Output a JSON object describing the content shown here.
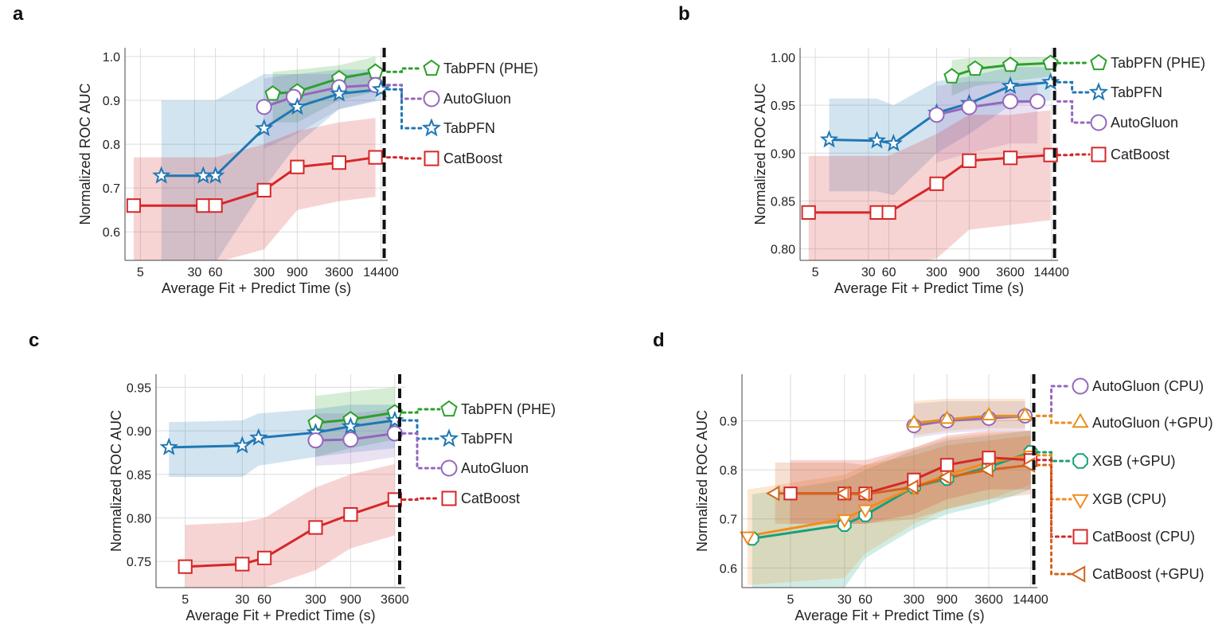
{
  "colors": {
    "tabpfn_phe": "#2ca02c",
    "tabpfn": "#1f77b4",
    "autogluon": "#9467bd",
    "catboost": "#d62728",
    "autogluon_gpu": "#e69119",
    "xgb_gpu": "#17a07a",
    "xgb_cpu": "#f28c1e",
    "catboost_gpu": "#d4641a"
  },
  "panels": [
    {
      "letter": "a"
    },
    {
      "letter": "b"
    },
    {
      "letter": "c"
    },
    {
      "letter": "d"
    }
  ],
  "chart_data": [
    {
      "panel": "a",
      "type": "line",
      "xscale": "log",
      "xlabel": "Average Fit + Predict Time (s)",
      "ylabel": "Normalized ROC AUC",
      "xticks": [
        5,
        30,
        60,
        300,
        900,
        3600,
        14400
      ],
      "xlim": [
        3,
        18000
      ],
      "yticks": [
        0.6,
        0.7,
        0.8,
        0.9,
        1.0
      ],
      "ytick_labels": [
        "0.6",
        "0.7",
        "0.8",
        "0.9",
        "1.0"
      ],
      "ylim": [
        0.535,
        1.02
      ],
      "time_limit": 16000,
      "grid": true,
      "series": [
        {
          "name": "TabPFN (PHE)",
          "color_key": "tabpfn_phe",
          "marker": "pentagon",
          "x": [
            400,
            900,
            3600,
            12000
          ],
          "y": [
            0.915,
            0.92,
            0.95,
            0.965
          ],
          "band_low": [
            0.85,
            0.85,
            0.9,
            0.92
          ],
          "band_high": [
            0.965,
            0.97,
            0.98,
            1.0
          ]
        },
        {
          "name": "AutoGluon",
          "color_key": "autogluon",
          "marker": "circle",
          "x": [
            300,
            800,
            3600,
            12000
          ],
          "y": [
            0.885,
            0.908,
            0.93,
            0.935
          ],
          "band_low": [
            0.79,
            0.82,
            0.88,
            0.9
          ],
          "band_high": [
            0.95,
            0.96,
            0.96,
            0.96
          ]
        },
        {
          "name": "TabPFN",
          "color_key": "tabpfn",
          "marker": "star",
          "x": [
            10,
            40,
            60,
            300,
            900,
            3600,
            14400
          ],
          "y": [
            0.728,
            0.728,
            0.728,
            0.836,
            0.885,
            0.915,
            0.925
          ],
          "band_low": [
            0.53,
            0.53,
            0.53,
            0.7,
            0.8,
            0.88,
            0.9
          ],
          "band_high": [
            0.9,
            0.9,
            0.9,
            0.96,
            0.96,
            0.97,
            0.97
          ]
        },
        {
          "name": "CatBoost",
          "color_key": "catboost",
          "marker": "square",
          "x": [
            4,
            40,
            60,
            300,
            900,
            3600,
            12000
          ],
          "y": [
            0.66,
            0.66,
            0.66,
            0.695,
            0.748,
            0.758,
            0.77
          ],
          "band_low": [
            0.53,
            0.53,
            0.53,
            0.56,
            0.65,
            0.67,
            0.68
          ],
          "band_high": [
            0.77,
            0.77,
            0.77,
            0.8,
            0.83,
            0.85,
            0.86
          ]
        }
      ],
      "legend": [
        "TabPFN (PHE)",
        "AutoGluon",
        "TabPFN",
        "CatBoost"
      ]
    },
    {
      "panel": "b",
      "type": "line",
      "xscale": "log",
      "xlabel": "Average Fit + Predict Time (s)",
      "ylabel": "Normalized ROC AUC",
      "xticks": [
        5,
        30,
        60,
        300,
        900,
        3600,
        14400
      ],
      "xlim": [
        3,
        18000
      ],
      "yticks": [
        0.8,
        0.85,
        0.9,
        0.95,
        1.0
      ],
      "ytick_labels": [
        "0.80",
        "0.85",
        "0.90",
        "0.95",
        "1.00"
      ],
      "ylim": [
        0.788,
        1.01
      ],
      "time_limit": 16000,
      "grid": true,
      "series": [
        {
          "name": "TabPFN (PHE)",
          "color_key": "tabpfn_phe",
          "marker": "pentagon",
          "x": [
            500,
            1100,
            3600,
            14000
          ],
          "y": [
            0.98,
            0.988,
            0.992,
            0.994
          ],
          "band_low": [
            0.96,
            0.97,
            0.975,
            0.98
          ],
          "band_high": [
            0.997,
            1.0,
            1.0,
            1.0
          ]
        },
        {
          "name": "TabPFN",
          "color_key": "tabpfn",
          "marker": "star",
          "x": [
            8,
            40,
            70,
            300,
            900,
            3600,
            14000
          ],
          "y": [
            0.914,
            0.913,
            0.91,
            0.942,
            0.952,
            0.97,
            0.974
          ],
          "band_low": [
            0.86,
            0.86,
            0.856,
            0.9,
            0.92,
            0.95,
            0.955
          ],
          "band_high": [
            0.957,
            0.957,
            0.95,
            0.975,
            0.98,
            0.99,
            0.99
          ]
        },
        {
          "name": "AutoGluon",
          "color_key": "autogluon",
          "marker": "circle",
          "x": [
            300,
            900,
            3600,
            9000
          ],
          "y": [
            0.94,
            0.948,
            0.954,
            0.954
          ],
          "band_low": [
            0.89,
            0.9,
            0.91,
            0.91
          ],
          "band_high": [
            0.97,
            0.975,
            0.975,
            0.975
          ]
        },
        {
          "name": "CatBoost",
          "color_key": "catboost",
          "marker": "square",
          "x": [
            4,
            40,
            60,
            300,
            900,
            3600,
            14000
          ],
          "y": [
            0.838,
            0.838,
            0.838,
            0.868,
            0.892,
            0.895,
            0.898
          ],
          "band_low": [
            0.78,
            0.78,
            0.78,
            0.79,
            0.82,
            0.825,
            0.83
          ],
          "band_high": [
            0.897,
            0.897,
            0.897,
            0.92,
            0.94,
            0.94,
            0.945
          ]
        }
      ],
      "legend": [
        "TabPFN (PHE)",
        "TabPFN",
        "AutoGluon",
        "CatBoost"
      ]
    },
    {
      "panel": "c",
      "type": "line",
      "xscale": "log",
      "xlabel": "Average Fit + Predict Time (s)",
      "ylabel": "Normalized ROC AUC",
      "xticks": [
        5,
        30,
        60,
        300,
        900,
        3600
      ],
      "xlim": [
        2,
        5000
      ],
      "yticks": [
        0.75,
        0.8,
        0.85,
        0.9,
        0.95
      ],
      "ytick_labels": [
        "0.75",
        "0.80",
        "0.85",
        "0.90",
        "0.95"
      ],
      "ylim": [
        0.72,
        0.965
      ],
      "time_limit": 4200,
      "grid": true,
      "series": [
        {
          "name": "TabPFN (PHE)",
          "color_key": "tabpfn_phe",
          "marker": "pentagon",
          "x": [
            300,
            900,
            3600
          ],
          "y": [
            0.909,
            0.913,
            0.921
          ],
          "band_low": [
            0.87,
            0.88,
            0.89
          ],
          "band_high": [
            0.94,
            0.945,
            0.95
          ]
        },
        {
          "name": "TabPFN",
          "color_key": "tabpfn",
          "marker": "star",
          "x": [
            3,
            30,
            50,
            300,
            900,
            3600
          ],
          "y": [
            0.881,
            0.883,
            0.892,
            0.898,
            0.905,
            0.912
          ],
          "band_low": [
            0.847,
            0.847,
            0.86,
            0.87,
            0.875,
            0.88
          ],
          "band_high": [
            0.91,
            0.912,
            0.92,
            0.925,
            0.93,
            0.93
          ]
        },
        {
          "name": "AutoGluon",
          "color_key": "autogluon",
          "marker": "circle",
          "x": [
            300,
            900,
            3600
          ],
          "y": [
            0.889,
            0.89,
            0.897
          ],
          "band_low": [
            0.86,
            0.862,
            0.87
          ],
          "band_high": [
            0.92,
            0.92,
            0.925
          ]
        },
        {
          "name": "CatBoost",
          "color_key": "catboost",
          "marker": "square",
          "x": [
            5,
            30,
            60,
            300,
            900,
            3600
          ],
          "y": [
            0.744,
            0.747,
            0.754,
            0.789,
            0.804,
            0.821
          ],
          "band_low": [
            0.72,
            0.72,
            0.72,
            0.74,
            0.765,
            0.78
          ],
          "band_high": [
            0.792,
            0.795,
            0.8,
            0.835,
            0.85,
            0.862
          ]
        }
      ],
      "legend": [
        "TabPFN (PHE)",
        "TabPFN",
        "AutoGluon",
        "CatBoost"
      ]
    },
    {
      "panel": "d",
      "type": "line",
      "xscale": "log",
      "xlabel": "Average Fit + Predict Time (s)",
      "ylabel": "Normalized ROC AUC",
      "xticks": [
        5,
        30,
        60,
        300,
        900,
        3600,
        14400
      ],
      "xlim": [
        1,
        18000
      ],
      "yticks": [
        0.6,
        0.7,
        0.8,
        0.9
      ],
      "ytick_labels": [
        "0.6",
        "0.7",
        "0.8",
        "0.9"
      ],
      "ylim": [
        0.56,
        0.995
      ],
      "time_limit": 16000,
      "grid": true,
      "series": [
        {
          "name": "AutoGluon (CPU)",
          "color_key": "autogluon",
          "marker": "circle",
          "x": [
            300,
            900,
            3600,
            12000
          ],
          "y": [
            0.89,
            0.9,
            0.905,
            0.91
          ],
          "band_low": [
            0.865,
            0.875,
            0.88,
            0.88
          ],
          "band_high": [
            0.935,
            0.94,
            0.94,
            0.94
          ]
        },
        {
          "name": "AutoGluon (+GPU)",
          "color_key": "autogluon_gpu",
          "marker": "triangle-up",
          "x": [
            300,
            900,
            3600,
            12000
          ],
          "y": [
            0.895,
            0.903,
            0.91,
            0.91
          ],
          "band_low": [
            0.87,
            0.88,
            0.885,
            0.885
          ],
          "band_high": [
            0.94,
            0.945,
            0.945,
            0.945
          ]
        },
        {
          "name": "XGB (+GPU)",
          "color_key": "xgb_gpu",
          "marker": "octagon",
          "x": [
            1.4,
            30,
            60,
            300,
            900,
            3600,
            14400
          ],
          "y": [
            0.66,
            0.688,
            0.708,
            0.765,
            0.782,
            0.806,
            0.836
          ],
          "band_low": [
            0.56,
            0.56,
            0.62,
            0.68,
            0.71,
            0.73,
            0.76
          ],
          "band_high": [
            0.75,
            0.78,
            0.8,
            0.84,
            0.86,
            0.87,
            0.88
          ]
        },
        {
          "name": "XGB (CPU)",
          "color_key": "xgb_cpu",
          "marker": "triangle-down",
          "x": [
            1.2,
            30,
            60,
            300,
            900,
            3600,
            14400
          ],
          "y": [
            0.665,
            0.7,
            0.72,
            0.765,
            0.79,
            0.815,
            0.83
          ],
          "band_low": [
            0.565,
            0.58,
            0.63,
            0.69,
            0.72,
            0.74,
            0.77
          ],
          "band_high": [
            0.76,
            0.79,
            0.81,
            0.845,
            0.865,
            0.875,
            0.88
          ]
        },
        {
          "name": "CatBoost (CPU)",
          "color_key": "catboost",
          "marker": "square",
          "x": [
            5,
            30,
            60,
            300,
            900,
            3600,
            14400
          ],
          "y": [
            0.752,
            0.752,
            0.752,
            0.78,
            0.81,
            0.825,
            0.82
          ],
          "band_low": [
            0.69,
            0.69,
            0.69,
            0.71,
            0.74,
            0.76,
            0.76
          ],
          "band_high": [
            0.82,
            0.82,
            0.82,
            0.845,
            0.87,
            0.88,
            0.88
          ]
        },
        {
          "name": "CatBoost (+GPU)",
          "color_key": "catboost_gpu",
          "marker": "triangle-left",
          "x": [
            3,
            30,
            60,
            300,
            900,
            3600,
            14400
          ],
          "y": [
            0.752,
            0.752,
            0.75,
            0.765,
            0.785,
            0.8,
            0.81
          ],
          "band_low": [
            0.69,
            0.69,
            0.69,
            0.7,
            0.72,
            0.74,
            0.75
          ],
          "band_high": [
            0.815,
            0.815,
            0.81,
            0.83,
            0.85,
            0.86,
            0.87
          ]
        }
      ],
      "legend": [
        "AutoGluon (CPU)",
        "AutoGluon (+GPU)",
        "XGB (+GPU)",
        "XGB (CPU)",
        "CatBoost (CPU)",
        "CatBoost (+GPU)"
      ]
    }
  ]
}
